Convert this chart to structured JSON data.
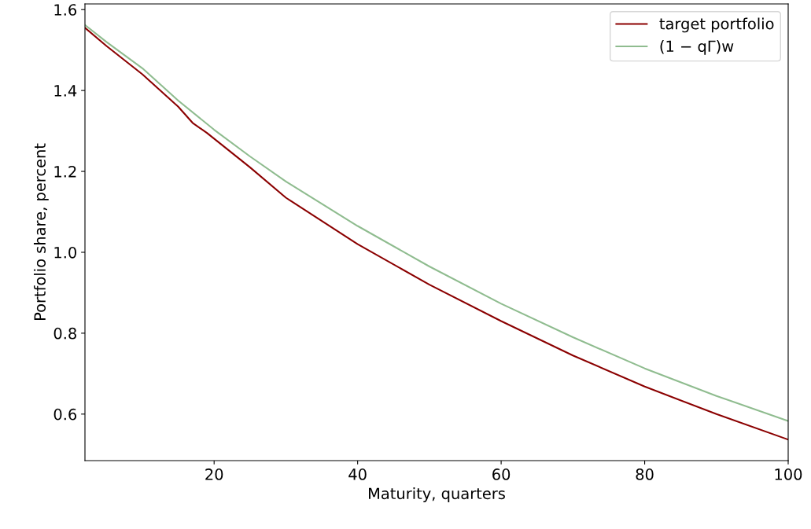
{
  "chart_data": {
    "type": "line",
    "xlabel": "Maturity, quarters",
    "ylabel": "Portfolio share, percent",
    "xlim": [
      2,
      100
    ],
    "xticks": [
      20,
      40,
      60,
      80,
      100
    ],
    "ylim": [
      0.485,
      1.614
    ],
    "yticks": [
      0.6,
      0.8,
      {
        "value": 1,
        "label": "1.0"
      },
      1.2,
      1.4,
      1.6
    ],
    "legend": "top right",
    "grid": false,
    "series": [
      {
        "name": "target portfolio",
        "color": "#8b0000",
        "x": [
          2,
          5,
          10,
          15,
          17,
          19,
          25,
          30,
          40,
          50,
          60,
          70,
          80,
          90,
          100
        ],
        "values": [
          1.555,
          1.51,
          1.44,
          1.36,
          1.32,
          1.295,
          1.21,
          1.135,
          1.02,
          0.92,
          0.83,
          0.745,
          0.668,
          0.6,
          0.537
        ]
      },
      {
        "name": "(1 − qΓ)w",
        "color": "#8fbc8f",
        "x": [
          2,
          5,
          10,
          15,
          20,
          25,
          30,
          40,
          50,
          60,
          70,
          80,
          90,
          100
        ],
        "values": [
          1.562,
          1.52,
          1.455,
          1.375,
          1.303,
          1.237,
          1.175,
          1.065,
          0.965,
          0.873,
          0.79,
          0.713,
          0.645,
          0.583
        ]
      }
    ]
  }
}
